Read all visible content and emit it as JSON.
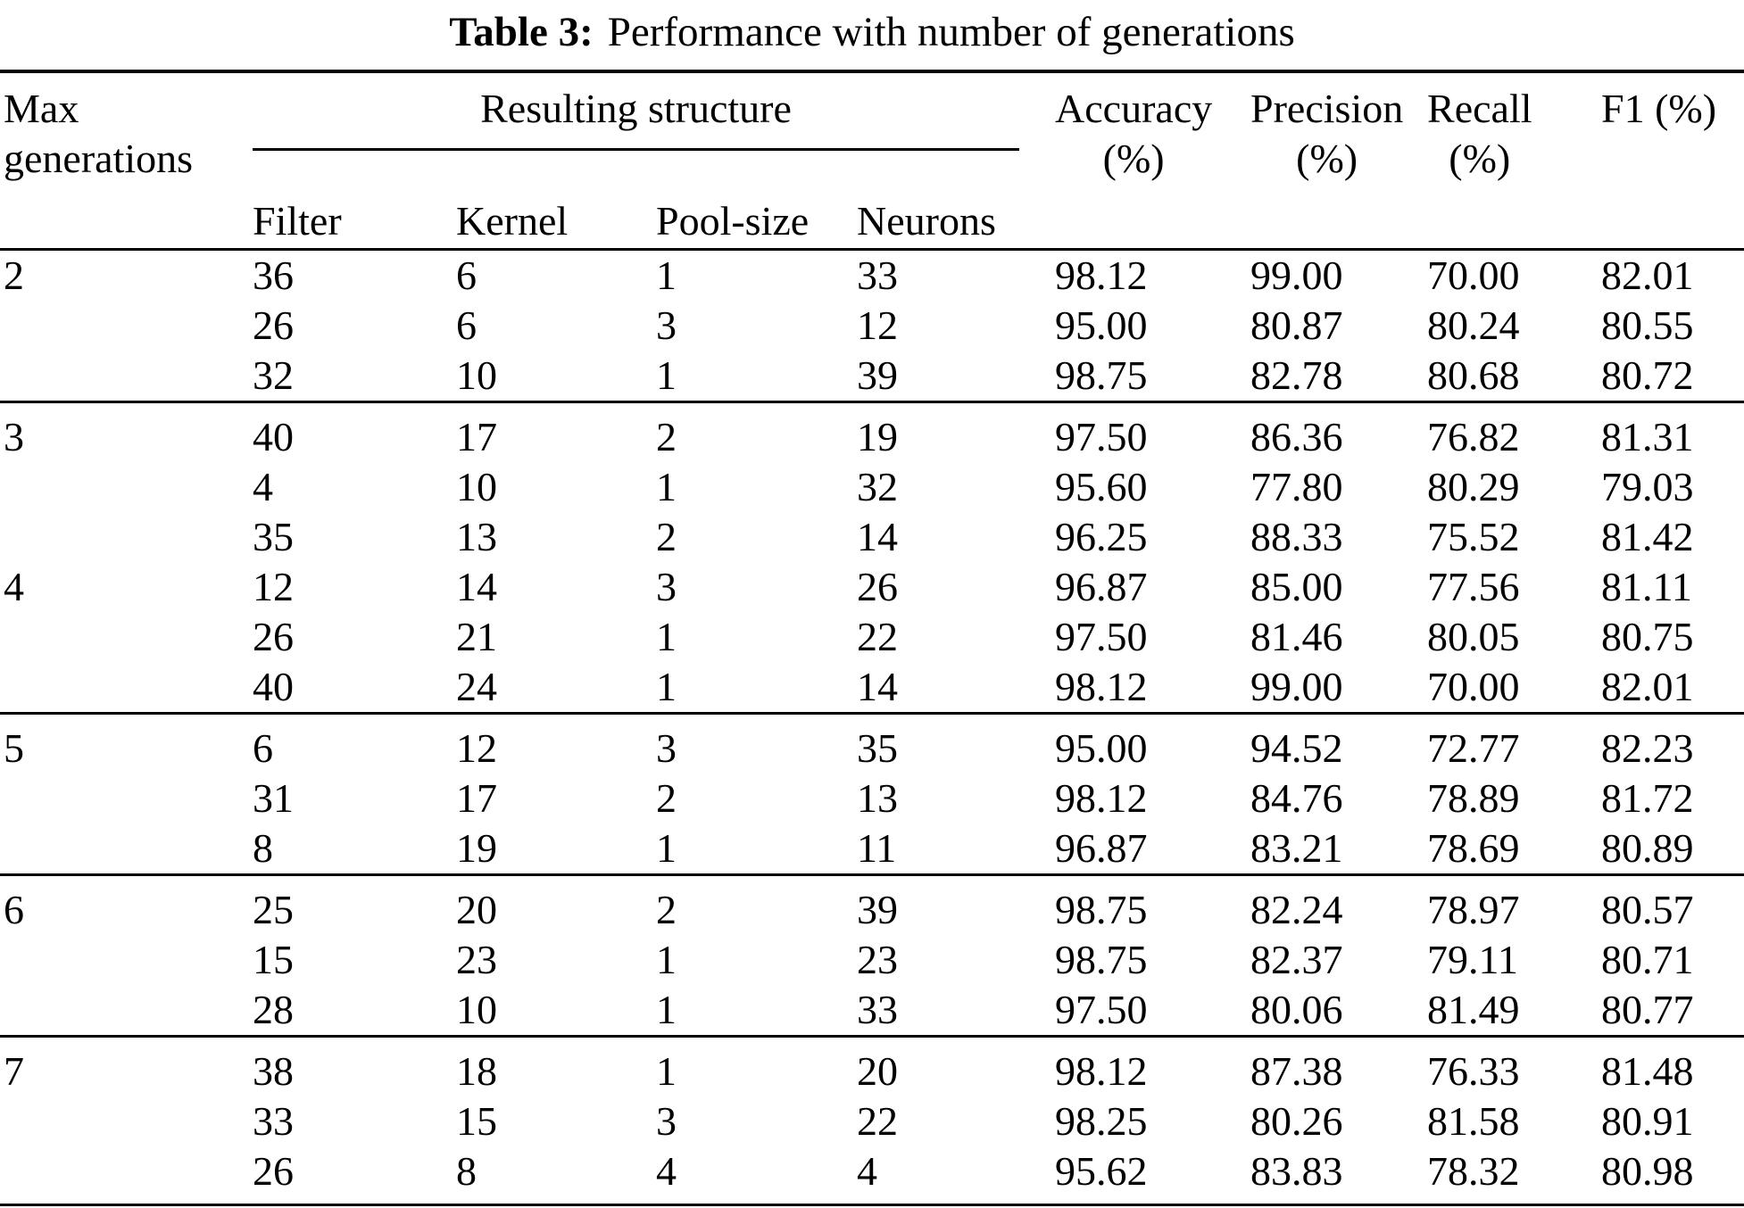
{
  "page": {
    "background": "#ffffff",
    "text_color": "#000000",
    "rule_color": "#000000"
  },
  "title": {
    "label": "Table 3:",
    "text": "Performance with number of generations"
  },
  "table": {
    "columns": {
      "max_generations": "Max generations",
      "group_header": "Resulting structure",
      "sub_columns": [
        "Filter",
        "Kernel",
        "Pool-size",
        "Neurons"
      ],
      "metrics": [
        {
          "label": "Accuracy",
          "unit": "(%)"
        },
        {
          "label": "Precision",
          "unit": "(%)"
        },
        {
          "label": "Recall",
          "unit": "(%)"
        },
        {
          "label": "F1 (%)"
        }
      ]
    },
    "groups": [
      {
        "label": "2",
        "rule_after": true,
        "rows": [
          {
            "filter": "36",
            "kernel": "6",
            "pool_size": "1",
            "neurons": "33",
            "accuracy": "98.12",
            "precision": "99.00",
            "recall": "70.00",
            "f1": "82.01"
          },
          {
            "filter": "26",
            "kernel": "6",
            "pool_size": "3",
            "neurons": "12",
            "accuracy": "95.00",
            "precision": "80.87",
            "recall": "80.24",
            "f1": "80.55"
          },
          {
            "filter": "32",
            "kernel": "10",
            "pool_size": "1",
            "neurons": "39",
            "accuracy": "98.75",
            "precision": "82.78",
            "recall": "80.68",
            "f1": "80.72"
          }
        ]
      },
      {
        "label": "3",
        "rule_after": false,
        "rows": [
          {
            "filter": "40",
            "kernel": "17",
            "pool_size": "2",
            "neurons": "19",
            "accuracy": "97.50",
            "precision": "86.36",
            "recall": "76.82",
            "f1": "81.31"
          },
          {
            "filter": "4",
            "kernel": "10",
            "pool_size": "1",
            "neurons": "32",
            "accuracy": "95.60",
            "precision": "77.80",
            "recall": "80.29",
            "f1": "79.03"
          },
          {
            "filter": "35",
            "kernel": "13",
            "pool_size": "2",
            "neurons": "14",
            "accuracy": "96.25",
            "precision": "88.33",
            "recall": "75.52",
            "f1": "81.42"
          }
        ]
      },
      {
        "label": "4",
        "rule_after": true,
        "rows": [
          {
            "filter": "12",
            "kernel": "14",
            "pool_size": "3",
            "neurons": "26",
            "accuracy": "96.87",
            "precision": "85.00",
            "recall": "77.56",
            "f1": "81.11"
          },
          {
            "filter": "26",
            "kernel": "21",
            "pool_size": "1",
            "neurons": "22",
            "accuracy": "97.50",
            "precision": "81.46",
            "recall": "80.05",
            "f1": "80.75"
          },
          {
            "filter": "40",
            "kernel": "24",
            "pool_size": "1",
            "neurons": "14",
            "accuracy": "98.12",
            "precision": "99.00",
            "recall": "70.00",
            "f1": "82.01"
          }
        ]
      },
      {
        "label": "5",
        "rule_after": true,
        "rows": [
          {
            "filter": "6",
            "kernel": "12",
            "pool_size": "3",
            "neurons": "35",
            "accuracy": "95.00",
            "precision": "94.52",
            "recall": "72.77",
            "f1": "82.23"
          },
          {
            "filter": "31",
            "kernel": "17",
            "pool_size": "2",
            "neurons": "13",
            "accuracy": "98.12",
            "precision": "84.76",
            "recall": "78.89",
            "f1": "81.72"
          },
          {
            "filter": "8",
            "kernel": "19",
            "pool_size": "1",
            "neurons": "11",
            "accuracy": "96.87",
            "precision": "83.21",
            "recall": "78.69",
            "f1": "80.89"
          }
        ]
      },
      {
        "label": "6",
        "rule_after": true,
        "rows": [
          {
            "filter": "25",
            "kernel": "20",
            "pool_size": "2",
            "neurons": "39",
            "accuracy": "98.75",
            "precision": "82.24",
            "recall": "78.97",
            "f1": "80.57"
          },
          {
            "filter": "15",
            "kernel": "23",
            "pool_size": "1",
            "neurons": "23",
            "accuracy": "98.75",
            "precision": "82.37",
            "recall": "79.11",
            "f1": "80.71"
          },
          {
            "filter": "28",
            "kernel": "10",
            "pool_size": "1",
            "neurons": "33",
            "accuracy": "97.50",
            "precision": "80.06",
            "recall": "81.49",
            "f1": "80.77"
          }
        ]
      },
      {
        "label": "7",
        "rule_after": false,
        "rows": [
          {
            "filter": "38",
            "kernel": "18",
            "pool_size": "1",
            "neurons": "20",
            "accuracy": "98.12",
            "precision": "87.38",
            "recall": "76.33",
            "f1": "81.48"
          },
          {
            "filter": "33",
            "kernel": "15",
            "pool_size": "3",
            "neurons": "22",
            "accuracy": "98.25",
            "precision": "80.26",
            "recall": "81.58",
            "f1": "80.91"
          },
          {
            "filter": "26",
            "kernel": "8",
            "pool_size": "4",
            "neurons": "4",
            "accuracy": "95.62",
            "precision": "83.83",
            "recall": "78.32",
            "f1": "80.98"
          }
        ]
      }
    ]
  }
}
